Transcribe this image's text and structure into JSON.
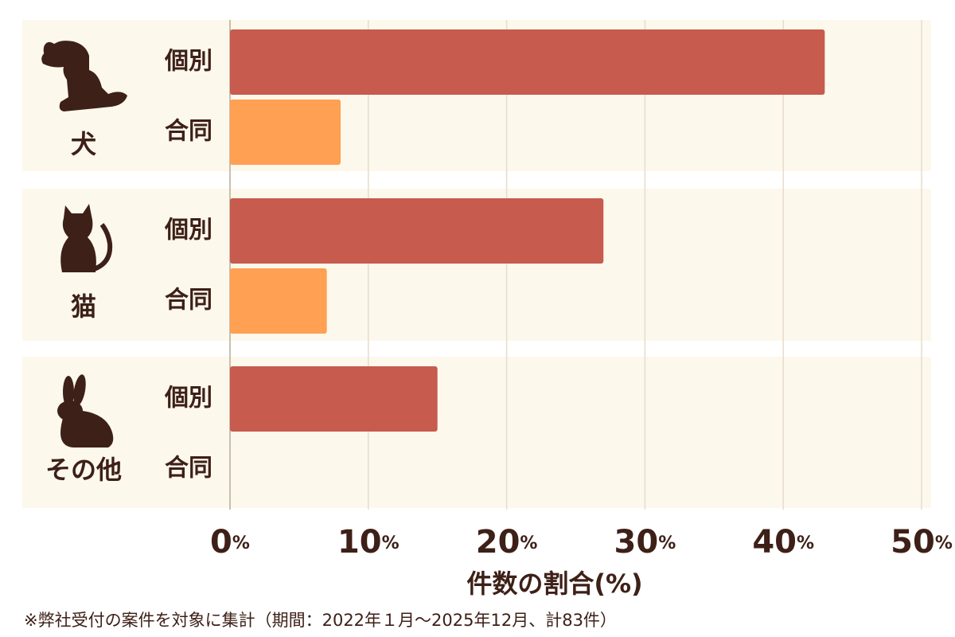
{
  "chart_data": {
    "type": "bar",
    "orientation": "horizontal",
    "categories": [
      "犬",
      "猫",
      "その他"
    ],
    "series": [
      {
        "name": "個別",
        "color": "#c65b4e",
        "values": [
          43,
          27,
          15
        ]
      },
      {
        "name": "合同",
        "color": "#ffa052",
        "values": [
          8,
          7,
          0
        ]
      }
    ],
    "xlim": [
      0,
      50
    ],
    "xticks": [
      {
        "value": 0,
        "label": "0%"
      },
      {
        "value": 10,
        "label": "10%"
      },
      {
        "value": 20,
        "label": "20%"
      },
      {
        "value": 30,
        "label": "30%"
      },
      {
        "value": 40,
        "label": "40%"
      },
      {
        "value": 50,
        "label": "50%"
      }
    ],
    "xlabel": "件数の割合(%)",
    "grid": true,
    "footnote": "※弊社受付の案件を対象に集計（期間：2022年１月～2025年12月、計83件）"
  }
}
